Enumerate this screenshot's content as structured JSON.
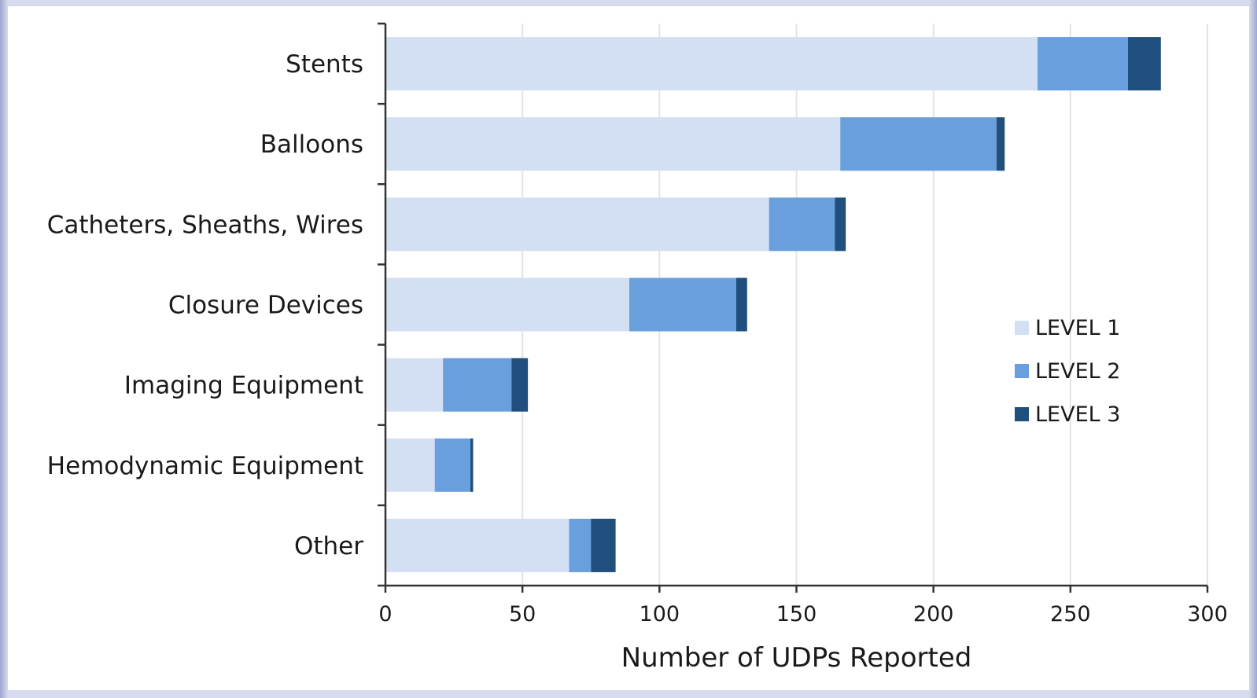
{
  "chart_data": {
    "type": "bar",
    "orientation": "horizontal",
    "stacked": true,
    "categories": [
      "Stents",
      "Balloons",
      "Catheters, Sheaths, Wires",
      "Closure Devices",
      "Imaging Equipment",
      "Hemodynamic Equipment",
      "Other"
    ],
    "series": [
      {
        "name": "LEVEL 1",
        "color": "#d3e0f3",
        "values": [
          238,
          166,
          140,
          89,
          21,
          18,
          67
        ]
      },
      {
        "name": "LEVEL 2",
        "color": "#6a9fdd",
        "values": [
          33,
          57,
          24,
          39,
          25,
          13,
          8
        ]
      },
      {
        "name": "LEVEL 3",
        "color": "#1f4f7c",
        "values": [
          12,
          3,
          4,
          4,
          6,
          1,
          9
        ]
      }
    ],
    "xlabel": "Number of UDPs Reported",
    "xlim": [
      0,
      300
    ],
    "xticks": [
      0,
      50,
      100,
      150,
      200,
      250,
      300
    ],
    "grid": "vertical",
    "legend_position": "right"
  }
}
